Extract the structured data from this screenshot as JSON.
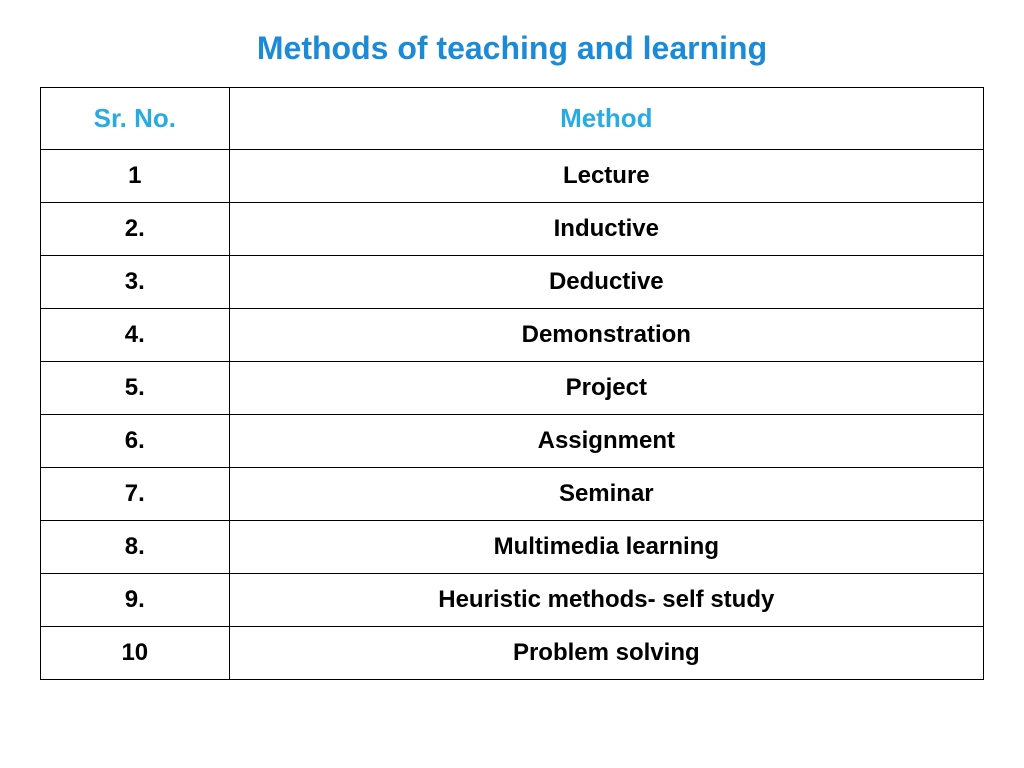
{
  "title": "Methods of teaching and learning",
  "title_color": "#1b8bd8",
  "title_fontsize": 32,
  "table": {
    "type": "table",
    "header_color": "#29abe2",
    "header_fontsize": 26,
    "cell_color": "#000000",
    "cell_fontsize": 24,
    "border_color": "#000000",
    "border_width": 1.5,
    "background_color": "#ffffff",
    "columns": [
      {
        "label": "Sr. No.",
        "width_pct": 20
      },
      {
        "label": "Method",
        "width_pct": 80
      }
    ],
    "rows": [
      {
        "sr": "1",
        "method": "Lecture"
      },
      {
        "sr": "2.",
        "method": "Inductive"
      },
      {
        "sr": "3.",
        "method": "Deductive"
      },
      {
        "sr": "4.",
        "method": "Demonstration"
      },
      {
        "sr": "5.",
        "method": "Project"
      },
      {
        "sr": "6.",
        "method": "Assignment"
      },
      {
        "sr": "7.",
        "method": "Seminar"
      },
      {
        "sr": "8.",
        "method": "Multimedia learning"
      },
      {
        "sr": "9.",
        "method": "Heuristic methods- self study"
      },
      {
        "sr": "10",
        "method": "Problem solving"
      }
    ]
  }
}
